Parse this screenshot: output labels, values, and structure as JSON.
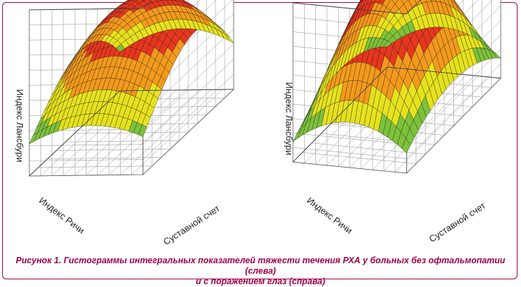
{
  "caption": {
    "line1": "Рисунок 1. Гистограммы интегральных показателей тяжести течения РХА у больных без офтальмопатии (слева)",
    "line2": "и с поражением глаз (справа)"
  },
  "colors": {
    "border": "#a0004a",
    "caption": "#a0004a",
    "surface_scale": [
      "#1e9a3c",
      "#7cc23a",
      "#e6e21e",
      "#f39a1c",
      "#e8361e",
      "#c4141b",
      "#8e1414"
    ]
  },
  "chart_data": [
    {
      "type": "surface3d",
      "title": "",
      "xlabel": "Индекс Ричи",
      "ylabel": "Суставной счет",
      "zlabel": "Индекс Лансбури",
      "grid": true,
      "shape": "dome with maximum near high joint count / mid Ritchie index",
      "z_min": 0.0,
      "z_max": 1.0
    },
    {
      "type": "surface3d",
      "title": "",
      "xlabel": "Индекс Ричи",
      "ylabel": "Суставной счет",
      "zlabel": "Индекс Лансбури",
      "grid": true,
      "shape": "peaked dome with maximum at the centre",
      "z_min": 0.0,
      "z_max": 1.0
    }
  ]
}
